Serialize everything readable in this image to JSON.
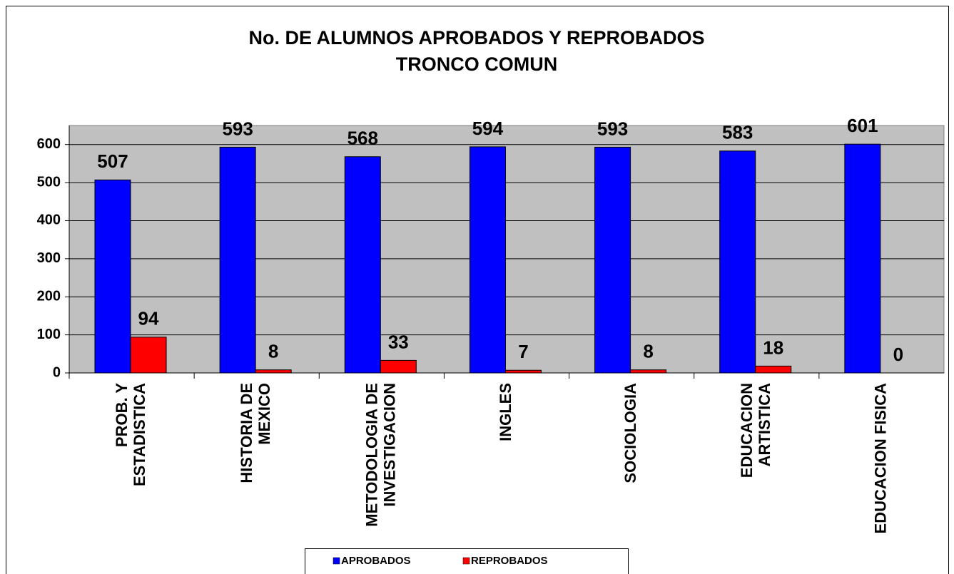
{
  "chart_data": {
    "type": "bar",
    "title": "No. DE ALUMNOS APROBADOS Y REPROBADOS\nTRONCO COMUN",
    "categories": [
      "PROB. Y\nESTADISTICA",
      "HISTORIA DE\nMEXICO",
      "METODOLOGIA DE\nINVESTIGACION",
      "INGLES",
      "SOCIOLOGIA",
      "EDUCACION\nARTISTICA",
      "EDUCACION FISICA"
    ],
    "series": [
      {
        "name": "APROBADOS",
        "color": "#0000ff",
        "values": [
          507,
          593,
          568,
          594,
          593,
          583,
          601
        ]
      },
      {
        "name": "REPROBADOS",
        "color": "#ff0000",
        "values": [
          94,
          8,
          33,
          7,
          8,
          18,
          0
        ]
      }
    ],
    "ylim": [
      0,
      650
    ],
    "yticks": [
      0,
      100,
      200,
      300,
      400,
      500,
      600
    ],
    "grid": true,
    "legend": "bottom"
  }
}
